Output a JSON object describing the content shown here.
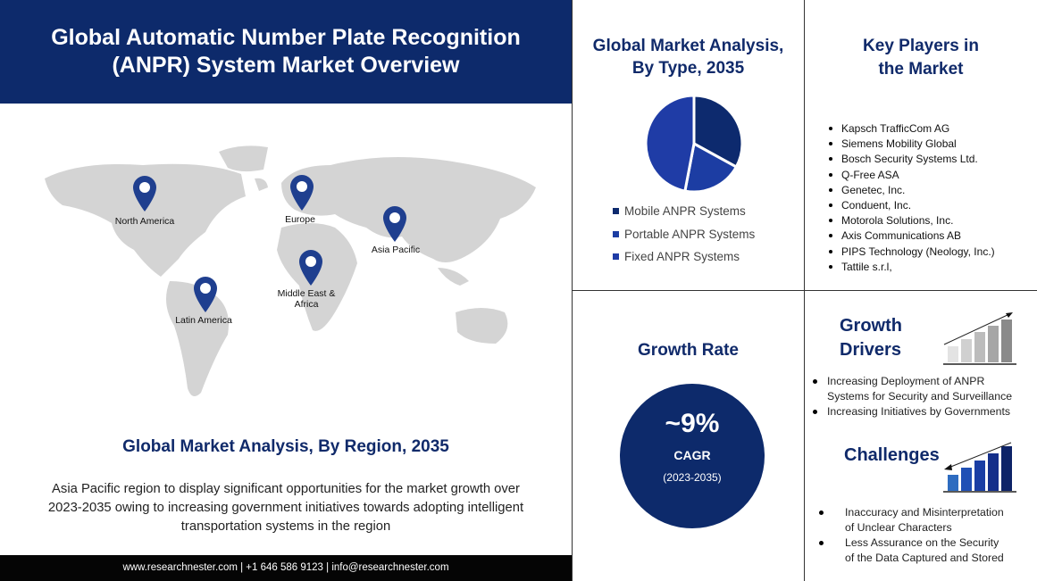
{
  "header": {
    "title_line1": "Global Automatic Number Plate Recognition",
    "title_line2": "(ANPR) System Market Overview"
  },
  "map": {
    "regions": [
      {
        "name": "North America"
      },
      {
        "name": "Europe"
      },
      {
        "name": "Asia Pacific"
      },
      {
        "name": "Middle East & Africa"
      },
      {
        "name": "Latin America"
      }
    ],
    "pin_color": "#1f3f8f"
  },
  "region_section": {
    "title": "Global Market Analysis, By Region, 2035",
    "text": "Asia Pacific region to display significant opportunities for the market growth over 2023-2035  owing to increasing government  initiatives towards adopting intelligent transportation systems in the region"
  },
  "footer": {
    "text": "www.researchnester.com  | +1 646 586 9123 | info@researchnester.com"
  },
  "type_section": {
    "title_line1": "Global Market Analysis,",
    "title_line2": "By Type, 2035"
  },
  "chart_data": {
    "type": "pie",
    "categories": [
      "Mobile ANPR Systems",
      "Portable ANPR Systems",
      "Fixed ANPR Systems"
    ],
    "values": [
      33,
      20,
      47
    ],
    "colors": [
      "#0d2a6e",
      "#1c3da3",
      "#1f3ca6"
    ],
    "legend": "bottom"
  },
  "key_players": {
    "title_line1": "Key Players in",
    "title_line2": "the Market",
    "items": [
      "Kapsch TrafficCom AG",
      "Siemens Mobility Global",
      "Bosch Security Systems Ltd.",
      "Q-Free ASA",
      "Genetec, Inc.",
      "Conduent, Inc.",
      "Motorola Solutions, Inc.",
      "Axis Communications  AB",
      "PIPS Technology (Neology, Inc.)",
      "Tattile s.r.l,"
    ]
  },
  "growth_rate": {
    "title": "Growth Rate",
    "value": "~9%",
    "label": "CAGR",
    "period": "(2023-2035)"
  },
  "growth_drivers": {
    "title_line1": "Growth",
    "title_line2": "Drivers",
    "items": [
      {
        "line1": "Increasing Deployment of ANPR",
        "line2": "Systems for Security and Surveillance"
      },
      {
        "line1": "Increasing Initiatives by Governments",
        "line2": ""
      }
    ]
  },
  "challenges": {
    "title": "Challenges",
    "items": [
      {
        "line1": "Inaccuracy and Misinterpretation",
        "line2": "of Unclear Characters"
      },
      {
        "line1": "Less Assurance on the Security",
        "line2": "of the Data Captured and Stored"
      }
    ]
  }
}
